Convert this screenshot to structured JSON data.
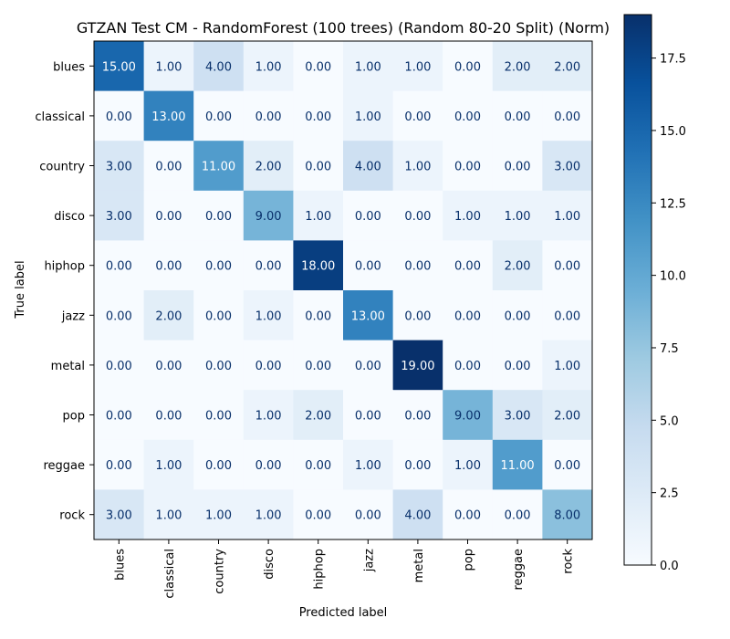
{
  "chart_data": {
    "type": "heatmap",
    "title": "GTZAN Test CM - RandomForest (100 trees) (Random 80-20 Split) (Norm)",
    "xlabel": "Predicted label",
    "ylabel": "True label",
    "x_categories": [
      "blues",
      "classical",
      "country",
      "disco",
      "hiphop",
      "jazz",
      "metal",
      "pop",
      "reggae",
      "rock"
    ],
    "y_categories": [
      "blues",
      "classical",
      "country",
      "disco",
      "hiphop",
      "jazz",
      "metal",
      "pop",
      "reggae",
      "rock"
    ],
    "values": [
      [
        15,
        1,
        4,
        1,
        0,
        1,
        1,
        0,
        2,
        2
      ],
      [
        0,
        13,
        0,
        0,
        0,
        1,
        0,
        0,
        0,
        0
      ],
      [
        3,
        0,
        11,
        2,
        0,
        4,
        1,
        0,
        0,
        3
      ],
      [
        3,
        0,
        0,
        9,
        1,
        0,
        0,
        1,
        1,
        1
      ],
      [
        0,
        0,
        0,
        0,
        18,
        0,
        0,
        0,
        2,
        0
      ],
      [
        0,
        2,
        0,
        1,
        0,
        13,
        0,
        0,
        0,
        0
      ],
      [
        0,
        0,
        0,
        0,
        0,
        0,
        19,
        0,
        0,
        1
      ],
      [
        0,
        0,
        0,
        1,
        2,
        0,
        0,
        9,
        3,
        2
      ],
      [
        0,
        1,
        0,
        0,
        0,
        1,
        0,
        1,
        11,
        0
      ],
      [
        3,
        1,
        1,
        1,
        0,
        0,
        4,
        0,
        0,
        8
      ]
    ],
    "value_format": "2 decimals",
    "colormap": "Blues",
    "colorbar": {
      "range": [
        0,
        19
      ],
      "ticks": [
        0,
        2.5,
        5,
        7.5,
        10,
        12.5,
        15,
        17.5
      ],
      "tick_labels": [
        "0.0",
        "2.5",
        "5.0",
        "7.5",
        "10.0",
        "12.5",
        "15.0",
        "17.5"
      ]
    },
    "grid": false
  }
}
